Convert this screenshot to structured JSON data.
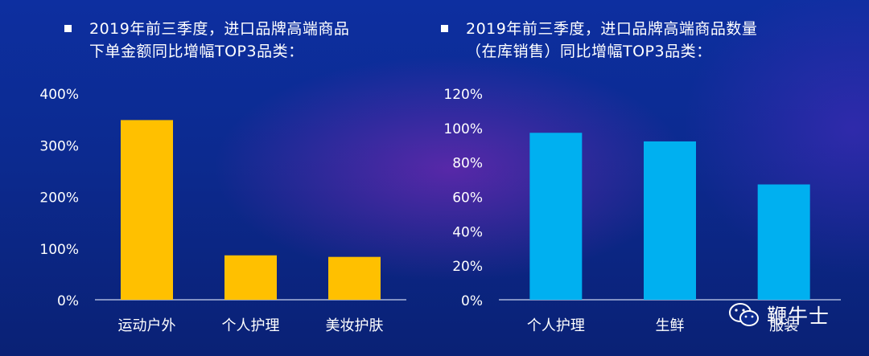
{
  "chart_data": [
    {
      "type": "bar",
      "title": "2019年前三季度，进口品牌高端商品下单金额同比增幅TOP3品类：",
      "categories": [
        "运动户外",
        "个人护理",
        "美妆护肤"
      ],
      "values": [
        348,
        86,
        83
      ],
      "y_ticks": [
        "0%",
        "100%",
        "200%",
        "300%",
        "400%"
      ],
      "ylim": [
        0,
        400
      ],
      "unit": "%",
      "bar_color": "#FFC000",
      "grid": false,
      "legend": "none"
    },
    {
      "type": "bar",
      "title": "2019年前三季度，进口品牌高端商品数量（在库销售）同比增幅TOP3品类：",
      "categories": [
        "个人护理",
        "生鲜",
        "服装"
      ],
      "values": [
        97,
        92,
        67
      ],
      "y_ticks": [
        "0%",
        "20%",
        "40%",
        "60%",
        "80%",
        "100%",
        "120%"
      ],
      "ylim": [
        0,
        120
      ],
      "unit": "%",
      "bar_color": "#00B0F0",
      "grid": false,
      "legend": "none"
    }
  ],
  "watermark": {
    "text": "鞭牛士",
    "icon": "wechat-icon"
  }
}
